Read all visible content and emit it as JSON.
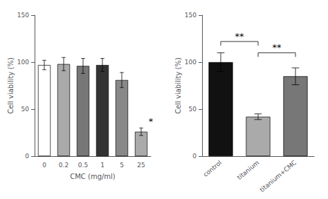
{
  "chart_data": [
    {
      "type": "bar",
      "categories": [
        "0",
        "0.2",
        "0.5",
        "1",
        "5",
        "25"
      ],
      "values": [
        97,
        98,
        96,
        97,
        81,
        26
      ],
      "errors": [
        5,
        7,
        8,
        7,
        8,
        4
      ],
      "colors": [
        "#ffffff",
        "#aaaaaa",
        "#777777",
        "#333333",
        "#888888",
        "#aaaaaa"
      ],
      "xlabel": "CMC (mg/ml)",
      "ylabel": "Cell viability (%)",
      "ylim": [
        0,
        150
      ],
      "yticks": [
        0,
        50,
        100,
        150
      ],
      "grid": false,
      "annotations": [
        {
          "text": "*",
          "category": "25"
        }
      ]
    },
    {
      "type": "bar",
      "categories": [
        "control",
        "titanium",
        "titanium+CMC"
      ],
      "values": [
        100,
        42,
        85
      ],
      "errors": [
        10,
        3,
        9
      ],
      "colors": [
        "#111111",
        "#aaaaaa",
        "#777777"
      ],
      "ylabel": "Cell viability (%)",
      "ylim": [
        0,
        150
      ],
      "yticks": [
        0,
        50,
        100,
        150
      ],
      "grid": false,
      "annotations": [
        {
          "text": "**",
          "from": "control",
          "to": "titanium",
          "y": 122
        },
        {
          "text": "**",
          "from": "titanium",
          "to": "titanium+CMC",
          "y": 110
        }
      ]
    }
  ]
}
